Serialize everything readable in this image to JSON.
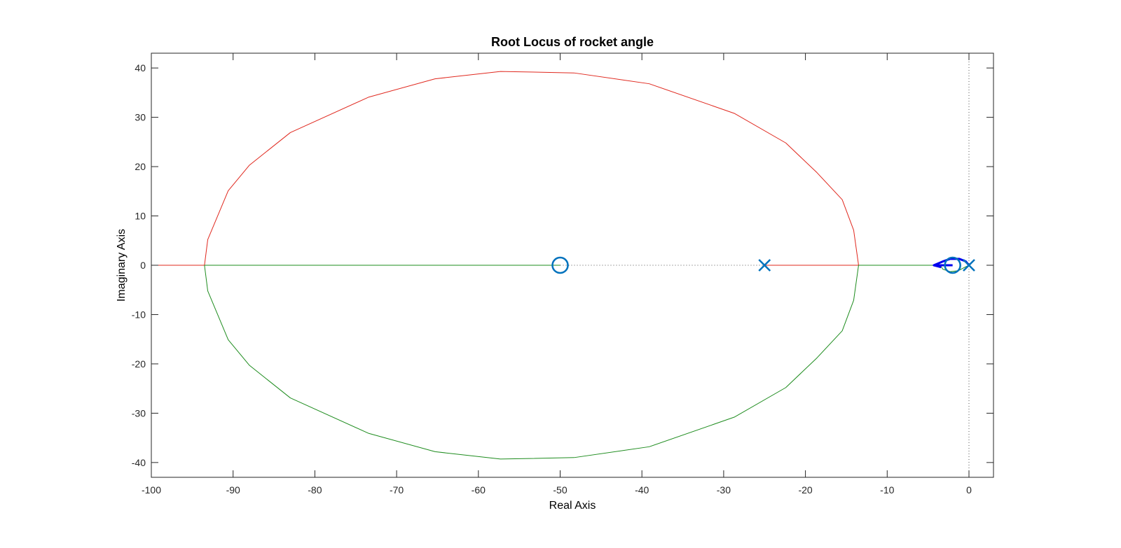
{
  "chart_data": {
    "type": "line",
    "title": "Root Locus of rocket angle",
    "xlabel": "Real Axis",
    "ylabel": "Imaginary Axis",
    "xlim": [
      -100,
      3
    ],
    "ylim": [
      -43,
      43
    ],
    "grid": false,
    "x_ticks": [
      -100,
      -90,
      -80,
      -70,
      -60,
      -50,
      -40,
      -30,
      -20,
      -10,
      0
    ],
    "y_ticks": [
      -40,
      -30,
      -20,
      -10,
      0,
      10,
      20,
      30,
      40
    ],
    "x_tick_labels": [
      "-100",
      "-90",
      "-80",
      "-70",
      "-60",
      "-50",
      "-40",
      "-30",
      "-20",
      "-10",
      "0"
    ],
    "y_tick_labels": [
      "-40",
      "-30",
      "-20",
      "-10",
      "0",
      "10",
      "20",
      "30",
      "40"
    ],
    "colors": {
      "upper_branch": "#e0281e",
      "lower_branch": "#1e8c1e",
      "markers": "#0072bd",
      "small_loop": "#0000ee",
      "axes": "#262626"
    },
    "series": [
      {
        "color": "#e0281e",
        "points": [
          [
            -25,
            0
          ],
          [
            -13.5,
            0
          ]
        ]
      },
      {
        "color": "#e0281e",
        "points": [
          [
            -13.5,
            0
          ],
          [
            -14.1,
            7.1
          ],
          [
            -15.5,
            13.3
          ],
          [
            -18.6,
            18.8
          ],
          [
            -22.4,
            24.8
          ],
          [
            -28.7,
            30.8
          ],
          [
            -39.1,
            36.8
          ],
          [
            -48.3,
            39.0
          ],
          [
            -57.3,
            39.3
          ],
          [
            -65.3,
            37.8
          ],
          [
            -73.4,
            34.1
          ],
          [
            -83.0,
            26.9
          ],
          [
            -88.0,
            20.3
          ],
          [
            -90.6,
            15.1
          ],
          [
            -93.1,
            5.2
          ],
          [
            -93.5,
            0
          ]
        ]
      },
      {
        "color": "#e0281e",
        "points": [
          [
            -93.5,
            0
          ],
          [
            -100,
            0
          ]
        ]
      },
      {
        "color": "#1e8c1e",
        "points": [
          [
            -13.5,
            0
          ],
          [
            -14.1,
            -7.1
          ],
          [
            -15.5,
            -13.3
          ],
          [
            -18.6,
            -18.8
          ],
          [
            -22.4,
            -24.8
          ],
          [
            -28.7,
            -30.8
          ],
          [
            -39.1,
            -36.8
          ],
          [
            -48.3,
            -39.0
          ],
          [
            -57.3,
            -39.3
          ],
          [
            -65.3,
            -37.8
          ],
          [
            -73.4,
            -34.1
          ],
          [
            -83.0,
            -26.9
          ],
          [
            -88.0,
            -20.3
          ],
          [
            -90.6,
            -15.1
          ],
          [
            -93.1,
            -5.2
          ],
          [
            -93.5,
            0
          ]
        ]
      },
      {
        "color": "#1e8c1e",
        "points": [
          [
            -93.5,
            0
          ],
          [
            -50,
            0
          ]
        ]
      },
      {
        "color": "#1e8c1e",
        "points": [
          [
            -13.5,
            0
          ],
          [
            -3.5,
            0
          ]
        ]
      },
      {
        "color": "#1e8c1e",
        "points": [
          [
            -3.5,
            0
          ],
          [
            -3.2,
            -0.8
          ],
          [
            -2.3,
            -1.3
          ],
          [
            -1.3,
            -1.1
          ],
          [
            -0.5,
            -0.4
          ],
          [
            0,
            0
          ]
        ]
      },
      {
        "color": "#0000ee",
        "points": [
          [
            0,
            0
          ],
          [
            -0.4,
            0.8
          ],
          [
            -1.2,
            1.3
          ],
          [
            -2.3,
            1.3
          ],
          [
            -3.3,
            0.7
          ],
          [
            -4.3,
            0
          ],
          [
            -3.4,
            -0.4
          ]
        ]
      },
      {
        "color": "#0000ee",
        "points": [
          [
            -4.3,
            0
          ],
          [
            -2.0,
            0
          ]
        ]
      }
    ],
    "poles": [
      [
        -25,
        0
      ],
      [
        0,
        0
      ]
    ],
    "zeros": [
      [
        -50,
        0
      ],
      [
        -2,
        0
      ]
    ],
    "dotted_lines": {
      "real_axis_segment": [
        [
          -50,
          0
        ],
        [
          -25,
          0
        ]
      ],
      "imag_axis_x": 0
    }
  }
}
